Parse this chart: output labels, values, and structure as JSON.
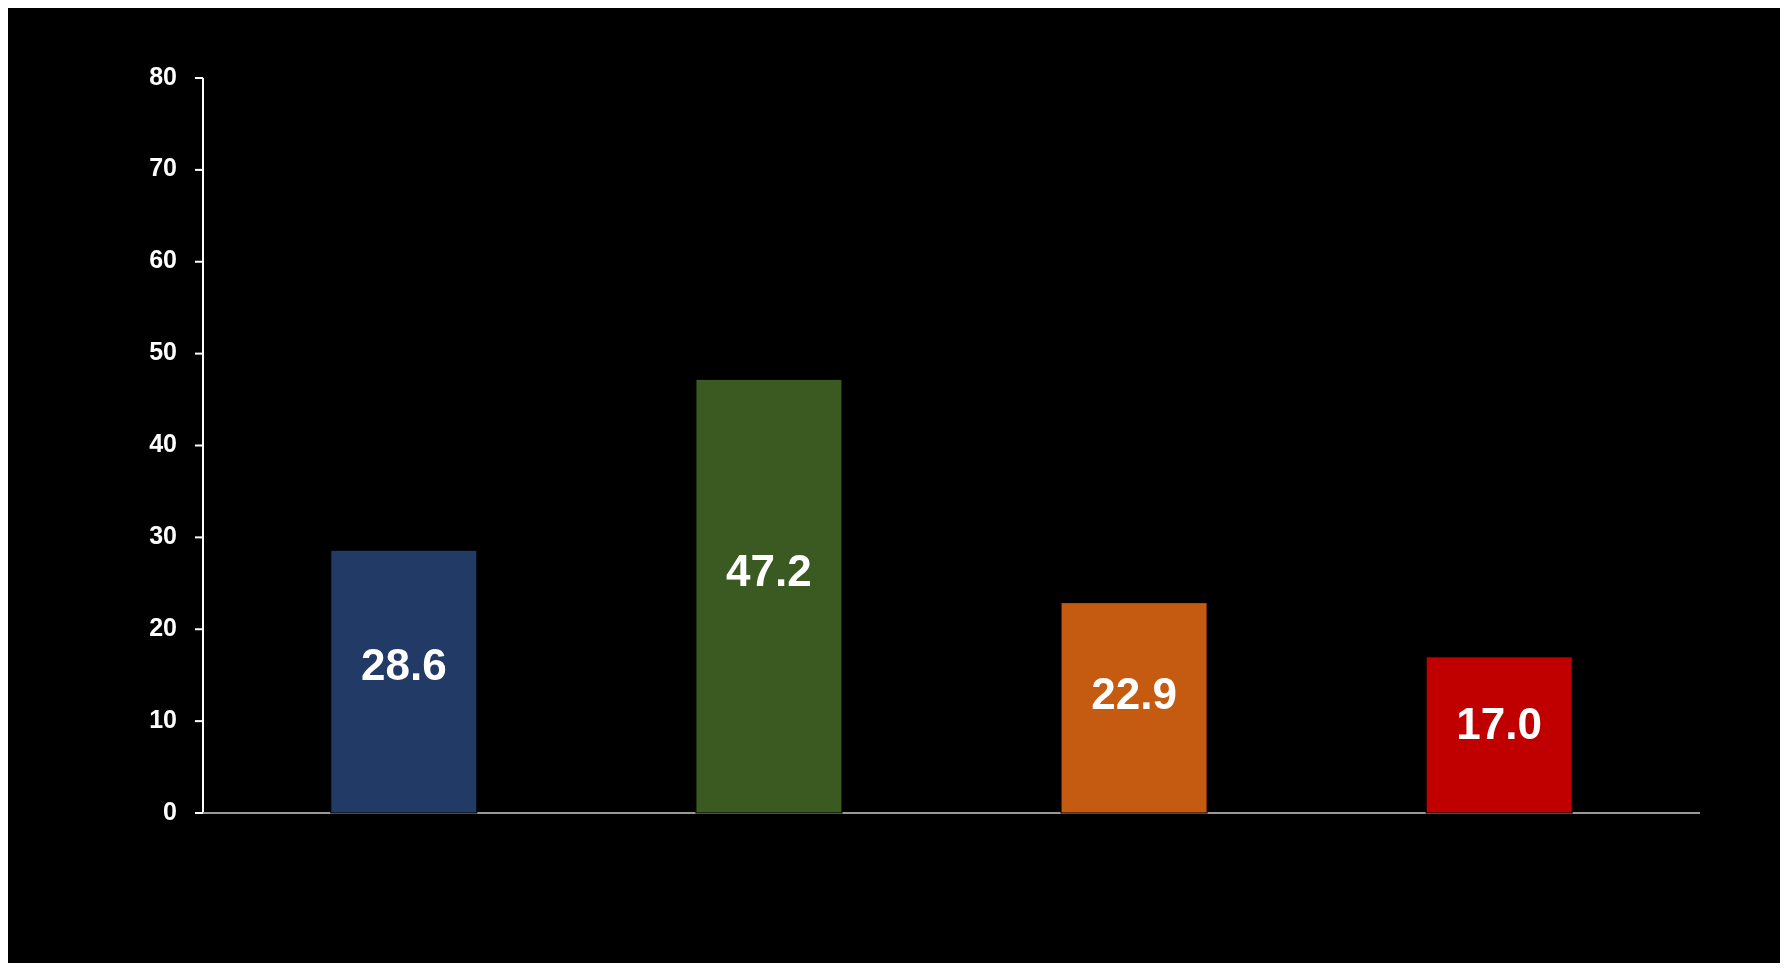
{
  "chart_data": {
    "type": "bar",
    "categories": [
      null,
      null,
      null,
      null
    ],
    "values": [
      28.6,
      47.2,
      22.9,
      17.0
    ],
    "colors": [
      "#213a66",
      "#3a5a22",
      "#c55a11",
      "#c00000"
    ],
    "value_labels": [
      "28.6",
      "47.2",
      "22.9",
      "17.0"
    ],
    "ylim": [
      0,
      80
    ],
    "yticks": [
      0,
      10,
      20,
      30,
      40,
      50,
      60,
      70,
      80
    ],
    "grid": false
  }
}
